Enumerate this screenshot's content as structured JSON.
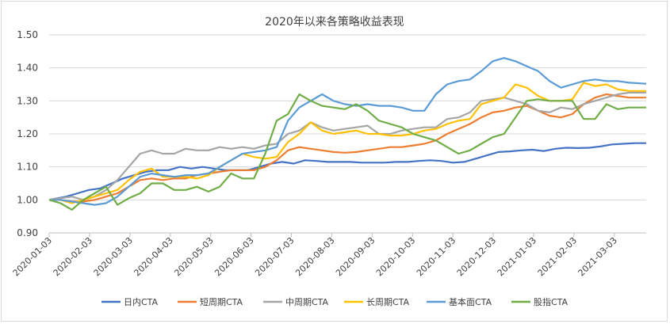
{
  "chart_data": {
    "type": "line",
    "title": "2020年以来各策略收益表现",
    "xlabel": "",
    "ylabel": "",
    "ylim": [
      0.9,
      1.5
    ],
    "yticks": [
      "1.50",
      "1.40",
      "1.30",
      "1.20",
      "1.10",
      "1.00",
      "0.90"
    ],
    "xticks": [
      "2020-01-03",
      "2020-02-03",
      "2020-03-03",
      "2020-04-03",
      "2020-05-03",
      "2020-06-03",
      "2020-07-03",
      "2020-08-03",
      "2020-09-03",
      "2020-10-03",
      "2020-11-03",
      "2020-12-03",
      "2021-01-03",
      "2021-02-03",
      "2021-03-03"
    ],
    "grid": true,
    "legend_position": "bottom",
    "series": [
      {
        "name": "日内CTA",
        "color": "#4472c4",
        "points": [
          [
            0,
            1.0
          ],
          [
            3,
            1.01
          ],
          [
            5,
            1.02
          ],
          [
            7,
            1.03
          ],
          [
            9,
            1.035
          ],
          [
            11,
            1.05
          ],
          [
            13,
            1.065
          ],
          [
            15,
            1.075
          ],
          [
            17,
            1.085
          ],
          [
            19,
            1.09
          ],
          [
            21,
            1.09
          ],
          [
            23,
            1.1
          ],
          [
            25,
            1.095
          ],
          [
            27,
            1.1
          ],
          [
            29,
            1.095
          ],
          [
            31,
            1.09
          ],
          [
            33,
            1.09
          ],
          [
            35,
            1.09
          ],
          [
            37,
            1.1
          ],
          [
            39,
            1.11
          ],
          [
            41,
            1.115
          ],
          [
            43,
            1.11
          ],
          [
            45,
            1.12
          ],
          [
            47,
            1.118
          ],
          [
            49,
            1.115
          ],
          [
            51,
            1.115
          ],
          [
            53,
            1.115
          ],
          [
            55,
            1.113
          ],
          [
            57,
            1.113
          ],
          [
            59,
            1.113
          ],
          [
            61,
            1.115
          ],
          [
            63,
            1.115
          ],
          [
            65,
            1.118
          ],
          [
            67,
            1.12
          ],
          [
            69,
            1.118
          ],
          [
            71,
            1.113
          ],
          [
            73,
            1.115
          ],
          [
            75,
            1.125
          ],
          [
            77,
            1.135
          ],
          [
            79,
            1.145
          ],
          [
            81,
            1.147
          ],
          [
            83,
            1.15
          ],
          [
            85,
            1.152
          ],
          [
            87,
            1.148
          ],
          [
            89,
            1.155
          ],
          [
            91,
            1.158
          ],
          [
            93,
            1.157
          ],
          [
            95,
            1.158
          ],
          [
            97,
            1.162
          ],
          [
            99,
            1.168
          ],
          [
            101,
            1.17
          ],
          [
            103,
            1.172
          ],
          [
            105,
            1.172
          ]
        ]
      },
      {
        "name": "短周期CTA",
        "color": "#ed7d31",
        "points": [
          [
            0,
            1.0
          ],
          [
            2,
            1.0
          ],
          [
            4,
            0.995
          ],
          [
            6,
            0.995
          ],
          [
            8,
            1.0
          ],
          [
            10,
            1.01
          ],
          [
            12,
            1.02
          ],
          [
            14,
            1.04
          ],
          [
            16,
            1.06
          ],
          [
            18,
            1.065
          ],
          [
            20,
            1.06
          ],
          [
            22,
            1.065
          ],
          [
            24,
            1.065
          ],
          [
            26,
            1.075
          ],
          [
            28,
            1.08
          ],
          [
            30,
            1.085
          ],
          [
            32,
            1.09
          ],
          [
            34,
            1.09
          ],
          [
            36,
            1.09
          ],
          [
            38,
            1.1
          ],
          [
            40,
            1.12
          ],
          [
            42,
            1.15
          ],
          [
            44,
            1.16
          ],
          [
            46,
            1.155
          ],
          [
            48,
            1.15
          ],
          [
            50,
            1.145
          ],
          [
            52,
            1.143
          ],
          [
            54,
            1.145
          ],
          [
            56,
            1.15
          ],
          [
            58,
            1.155
          ],
          [
            60,
            1.16
          ],
          [
            62,
            1.16
          ],
          [
            64,
            1.165
          ],
          [
            66,
            1.17
          ],
          [
            68,
            1.18
          ],
          [
            70,
            1.2
          ],
          [
            72,
            1.215
          ],
          [
            74,
            1.23
          ],
          [
            76,
            1.25
          ],
          [
            78,
            1.265
          ],
          [
            80,
            1.27
          ],
          [
            82,
            1.28
          ],
          [
            84,
            1.285
          ],
          [
            86,
            1.27
          ],
          [
            88,
            1.255
          ],
          [
            90,
            1.25
          ],
          [
            92,
            1.26
          ],
          [
            94,
            1.29
          ],
          [
            96,
            1.31
          ],
          [
            98,
            1.32
          ],
          [
            100,
            1.315
          ],
          [
            102,
            1.31
          ],
          [
            105,
            1.31
          ]
        ]
      },
      {
        "name": "中周期CTA",
        "color": "#a5a5a5",
        "points": [
          [
            0,
            1.0
          ],
          [
            2,
            1.005
          ],
          [
            4,
            1.01
          ],
          [
            6,
            1.0
          ],
          [
            8,
            1.01
          ],
          [
            10,
            1.03
          ],
          [
            12,
            1.06
          ],
          [
            14,
            1.1
          ],
          [
            16,
            1.14
          ],
          [
            18,
            1.15
          ],
          [
            20,
            1.14
          ],
          [
            22,
            1.14
          ],
          [
            24,
            1.155
          ],
          [
            26,
            1.15
          ],
          [
            28,
            1.15
          ],
          [
            30,
            1.16
          ],
          [
            32,
            1.155
          ],
          [
            34,
            1.16
          ],
          [
            36,
            1.155
          ],
          [
            38,
            1.165
          ],
          [
            40,
            1.17
          ],
          [
            42,
            1.2
          ],
          [
            44,
            1.21
          ],
          [
            46,
            1.235
          ],
          [
            48,
            1.22
          ],
          [
            50,
            1.21
          ],
          [
            52,
            1.215
          ],
          [
            54,
            1.22
          ],
          [
            56,
            1.225
          ],
          [
            58,
            1.2
          ],
          [
            60,
            1.2
          ],
          [
            62,
            1.21
          ],
          [
            64,
            1.215
          ],
          [
            66,
            1.22
          ],
          [
            68,
            1.22
          ],
          [
            70,
            1.245
          ],
          [
            72,
            1.25
          ],
          [
            74,
            1.265
          ],
          [
            76,
            1.3
          ],
          [
            78,
            1.305
          ],
          [
            80,
            1.31
          ],
          [
            82,
            1.3
          ],
          [
            84,
            1.29
          ],
          [
            86,
            1.27
          ],
          [
            88,
            1.265
          ],
          [
            90,
            1.28
          ],
          [
            92,
            1.275
          ],
          [
            94,
            1.29
          ],
          [
            96,
            1.3
          ],
          [
            98,
            1.31
          ],
          [
            100,
            1.32
          ],
          [
            102,
            1.325
          ],
          [
            105,
            1.325
          ]
        ]
      },
      {
        "name": "长周期CTA",
        "color": "#ffc000",
        "points": [
          [
            0,
            1.0
          ],
          [
            2,
            1.0
          ],
          [
            4,
            0.99
          ],
          [
            6,
            1.0
          ],
          [
            8,
            1.01
          ],
          [
            10,
            1.02
          ],
          [
            12,
            1.03
          ],
          [
            14,
            1.06
          ],
          [
            16,
            1.085
          ],
          [
            18,
            1.095
          ],
          [
            20,
            1.07
          ],
          [
            22,
            1.07
          ],
          [
            24,
            1.07
          ],
          [
            26,
            1.065
          ],
          [
            28,
            1.075
          ],
          [
            30,
            1.1
          ],
          [
            32,
            1.12
          ],
          [
            34,
            1.14
          ],
          [
            36,
            1.13
          ],
          [
            38,
            1.125
          ],
          [
            40,
            1.13
          ],
          [
            42,
            1.175
          ],
          [
            44,
            1.2
          ],
          [
            46,
            1.235
          ],
          [
            48,
            1.21
          ],
          [
            50,
            1.2
          ],
          [
            52,
            1.205
          ],
          [
            54,
            1.21
          ],
          [
            56,
            1.2
          ],
          [
            58,
            1.2
          ],
          [
            60,
            1.195
          ],
          [
            62,
            1.195
          ],
          [
            64,
            1.2
          ],
          [
            66,
            1.21
          ],
          [
            68,
            1.215
          ],
          [
            70,
            1.23
          ],
          [
            72,
            1.24
          ],
          [
            74,
            1.245
          ],
          [
            76,
            1.29
          ],
          [
            78,
            1.3
          ],
          [
            80,
            1.31
          ],
          [
            82,
            1.35
          ],
          [
            84,
            1.34
          ],
          [
            86,
            1.315
          ],
          [
            88,
            1.3
          ],
          [
            90,
            1.3
          ],
          [
            92,
            1.305
          ],
          [
            94,
            1.355
          ],
          [
            96,
            1.345
          ],
          [
            98,
            1.35
          ],
          [
            100,
            1.335
          ],
          [
            102,
            1.33
          ],
          [
            105,
            1.33
          ]
        ]
      },
      {
        "name": "基本面CTA",
        "color": "#5b9bd5",
        "points": [
          [
            0,
            1.0
          ],
          [
            2,
            1.0
          ],
          [
            4,
            0.995
          ],
          [
            6,
            0.99
          ],
          [
            8,
            0.985
          ],
          [
            10,
            0.99
          ],
          [
            12,
            1.01
          ],
          [
            14,
            1.04
          ],
          [
            16,
            1.07
          ],
          [
            18,
            1.08
          ],
          [
            20,
            1.075
          ],
          [
            22,
            1.07
          ],
          [
            24,
            1.075
          ],
          [
            26,
            1.075
          ],
          [
            28,
            1.08
          ],
          [
            30,
            1.1
          ],
          [
            32,
            1.12
          ],
          [
            34,
            1.14
          ],
          [
            36,
            1.145
          ],
          [
            38,
            1.15
          ],
          [
            40,
            1.16
          ],
          [
            42,
            1.24
          ],
          [
            44,
            1.28
          ],
          [
            46,
            1.3
          ],
          [
            48,
            1.32
          ],
          [
            50,
            1.3
          ],
          [
            52,
            1.29
          ],
          [
            54,
            1.285
          ],
          [
            56,
            1.29
          ],
          [
            58,
            1.285
          ],
          [
            60,
            1.285
          ],
          [
            62,
            1.28
          ],
          [
            64,
            1.27
          ],
          [
            66,
            1.27
          ],
          [
            68,
            1.32
          ],
          [
            70,
            1.35
          ],
          [
            72,
            1.36
          ],
          [
            74,
            1.365
          ],
          [
            76,
            1.39
          ],
          [
            78,
            1.42
          ],
          [
            80,
            1.43
          ],
          [
            82,
            1.42
          ],
          [
            84,
            1.405
          ],
          [
            86,
            1.39
          ],
          [
            88,
            1.36
          ],
          [
            90,
            1.34
          ],
          [
            92,
            1.35
          ],
          [
            94,
            1.36
          ],
          [
            96,
            1.365
          ],
          [
            98,
            1.36
          ],
          [
            100,
            1.36
          ],
          [
            102,
            1.355
          ],
          [
            105,
            1.352
          ]
        ]
      },
      {
        "name": "股指CTA",
        "color": "#70ad47",
        "points": [
          [
            0,
            1.0
          ],
          [
            2,
            0.99
          ],
          [
            4,
            0.97
          ],
          [
            6,
            1.0
          ],
          [
            8,
            1.02
          ],
          [
            10,
            1.04
          ],
          [
            12,
            0.985
          ],
          [
            14,
            1.005
          ],
          [
            16,
            1.02
          ],
          [
            18,
            1.05
          ],
          [
            20,
            1.05
          ],
          [
            22,
            1.03
          ],
          [
            24,
            1.03
          ],
          [
            26,
            1.04
          ],
          [
            28,
            1.025
          ],
          [
            30,
            1.04
          ],
          [
            32,
            1.08
          ],
          [
            34,
            1.065
          ],
          [
            36,
            1.065
          ],
          [
            38,
            1.14
          ],
          [
            40,
            1.24
          ],
          [
            42,
            1.26
          ],
          [
            44,
            1.32
          ],
          [
            46,
            1.3
          ],
          [
            48,
            1.285
          ],
          [
            50,
            1.28
          ],
          [
            52,
            1.275
          ],
          [
            54,
            1.29
          ],
          [
            56,
            1.27
          ],
          [
            58,
            1.24
          ],
          [
            60,
            1.23
          ],
          [
            62,
            1.22
          ],
          [
            64,
            1.2
          ],
          [
            66,
            1.19
          ],
          [
            68,
            1.18
          ],
          [
            70,
            1.16
          ],
          [
            72,
            1.14
          ],
          [
            74,
            1.15
          ],
          [
            76,
            1.17
          ],
          [
            78,
            1.19
          ],
          [
            80,
            1.2
          ],
          [
            82,
            1.25
          ],
          [
            84,
            1.3
          ],
          [
            86,
            1.305
          ],
          [
            88,
            1.3
          ],
          [
            90,
            1.3
          ],
          [
            92,
            1.3
          ],
          [
            94,
            1.245
          ],
          [
            96,
            1.245
          ],
          [
            98,
            1.29
          ],
          [
            100,
            1.275
          ],
          [
            102,
            1.28
          ],
          [
            105,
            1.28
          ]
        ]
      }
    ]
  }
}
